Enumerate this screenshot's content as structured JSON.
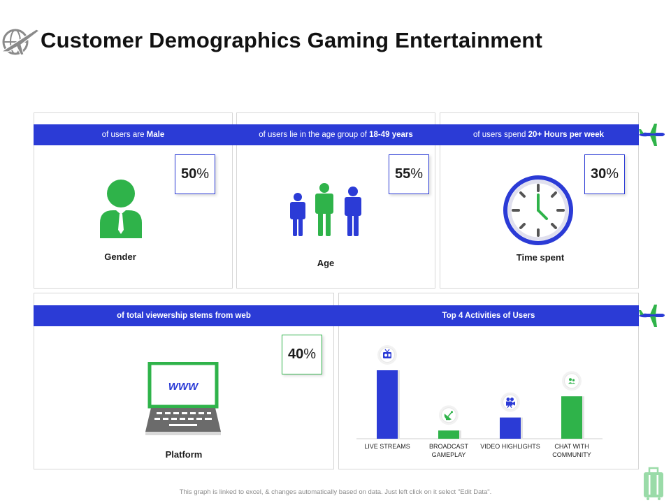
{
  "title": "Customer Demographics Gaming Entertainment",
  "colors": {
    "blue": "#2b3bd6",
    "green": "#2fb34a",
    "gray": "#6b6b6b"
  },
  "gender": {
    "caption_pre": "of users are ",
    "caption_bold": "Male",
    "value": "50",
    "unit": "%",
    "label": "Gender"
  },
  "age": {
    "caption_pre": "of users lie in the age group of ",
    "caption_bold": "18-49  years",
    "value": "55",
    "unit": "%",
    "label": "Age"
  },
  "time": {
    "caption_pre": "of users spend ",
    "caption_bold": "20+ Hours  per week",
    "value": "30",
    "unit": "%",
    "label": "Time spent"
  },
  "platform": {
    "caption": "of total viewership  stems from  web",
    "value": "40",
    "unit": "%",
    "label": "Platform",
    "screen_text": "WWW"
  },
  "activities": {
    "caption": "Top 4 Activities  of Users"
  },
  "chart_data": {
    "type": "bar",
    "title": "Top 4 Activities  of Users",
    "categories": [
      "LIVE STREAMS",
      "BROADCAST GAMEPLAY",
      "VIDEO HIGHLIGHTS",
      "CHAT WITH COMMUNITY"
    ],
    "category_lines": [
      [
        "LIVE STREAMS"
      ],
      [
        "BROADCAST",
        "GAMEPLAY"
      ],
      [
        "VIDEO HIGHLIGHTS"
      ],
      [
        "CHAT WITH",
        "COMMUNITY"
      ]
    ],
    "values": [
      100,
      12,
      31,
      62
    ],
    "colors": [
      "#2b3bd6",
      "#2fb34a",
      "#2b3bd6",
      "#2fb34a"
    ],
    "icons": [
      "tv-icon",
      "satellite-dish-icon",
      "video-camera-icon",
      "chat-users-icon"
    ],
    "ylim": [
      0,
      100
    ],
    "grid": false,
    "xlabel": "",
    "ylabel": ""
  },
  "footnote": "This graph is linked to excel, & changes automatically based on data. Just left click on it select \"Edit Data\"."
}
